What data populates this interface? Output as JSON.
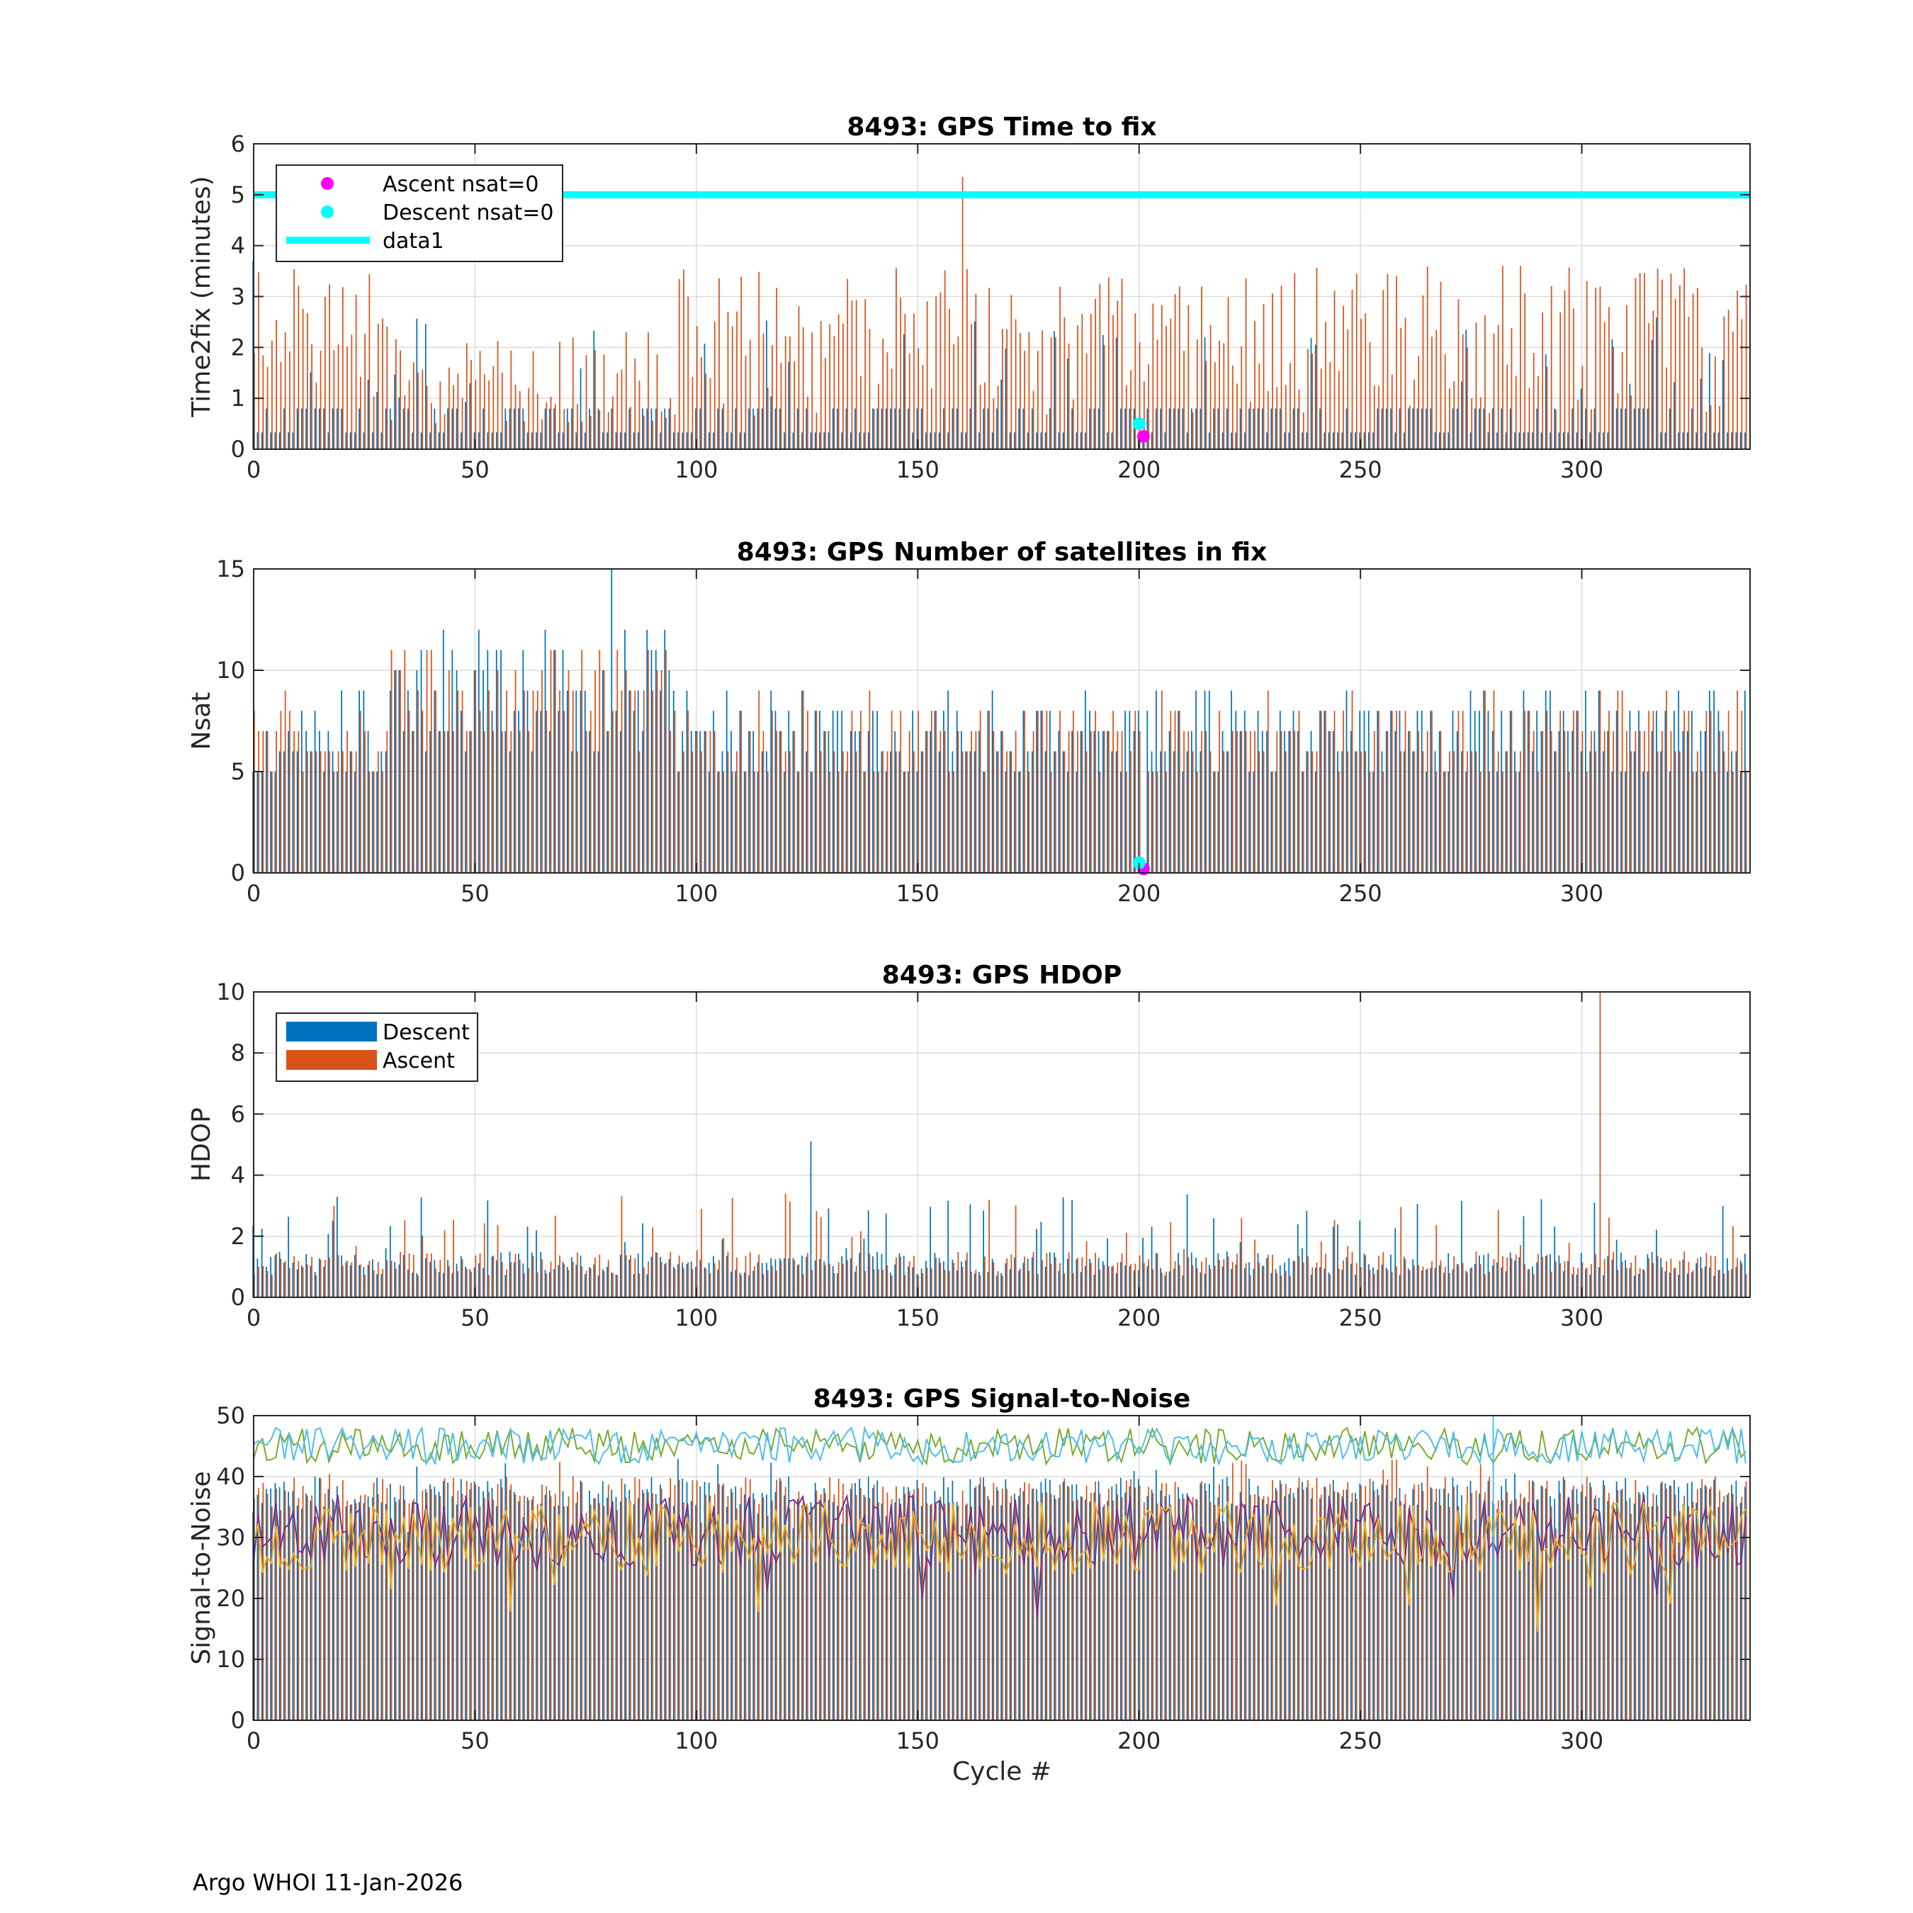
{
  "figure": {
    "footer": "Argo WHOI 11-Jan-2026",
    "xlabel": "Cycle #",
    "xlim": [
      0,
      338
    ],
    "xticks": [
      0,
      50,
      100,
      150,
      200,
      250,
      300
    ],
    "colors": {
      "descent": "#0072bd",
      "ascent": "#d95319",
      "magenta": "#ff00ff",
      "cyan": "#00ffff",
      "purple": "#7e2f8e",
      "yellow": "#edb120",
      "green": "#77ac30",
      "lightblue": "#4dbeee"
    }
  },
  "chart_data": [
    {
      "type": "bar",
      "title": "8493: GPS Time to fix",
      "ylabel": "Time2fix (minutes)",
      "ylim": [
        0,
        6
      ],
      "yticks": [
        0,
        1,
        2,
        3,
        4,
        5,
        6
      ],
      "grid": true,
      "legend_position": "top-left",
      "legend": [
        {
          "label": "Ascent nsat=0",
          "kind": "marker",
          "color": "#ff00ff"
        },
        {
          "label": "Descent nsat=0",
          "kind": "marker",
          "color": "#00ffff"
        },
        {
          "label": "data1",
          "kind": "line",
          "color": "#00ffff"
        }
      ],
      "reference_line": {
        "y": 5,
        "color": "#00ffff"
      },
      "markers": [
        {
          "name": "Ascent nsat=0",
          "x": 201,
          "y": 0.25,
          "color": "#ff00ff"
        },
        {
          "name": "Descent nsat=0",
          "x": 200,
          "y": 0.5,
          "color": "#00ffff"
        }
      ],
      "series_summary": [
        {
          "name": "Descent",
          "typical_range": [
            0.3,
            0.8
          ],
          "max": 3.7
        },
        {
          "name": "Ascent",
          "typical_range": [
            1.0,
            3.5
          ],
          "max": 5.35,
          "max_at_cycle": 160
        }
      ]
    },
    {
      "type": "bar",
      "title": "8493: GPS Number of satellites in fix",
      "ylabel": "Nsat",
      "ylim": [
        0,
        15
      ],
      "yticks": [
        0,
        5,
        10,
        15
      ],
      "grid": true,
      "markers": [
        {
          "name": "Ascent nsat=0",
          "x": 201,
          "y": 0.2,
          "color": "#ff00ff"
        },
        {
          "name": "Descent nsat=0",
          "x": 200,
          "y": 0.5,
          "color": "#00ffff"
        }
      ],
      "series_summary": [
        {
          "name": "Descent",
          "typical_range": [
            5,
            9
          ],
          "max": 15,
          "max_at_cycle": 81
        },
        {
          "name": "Ascent",
          "typical_range": [
            5,
            9
          ],
          "max": 12
        }
      ]
    },
    {
      "type": "bar",
      "title": "8493: GPS HDOP",
      "ylabel": "HDOP",
      "ylim": [
        0,
        10
      ],
      "yticks": [
        0,
        2,
        4,
        6,
        8,
        10
      ],
      "grid": true,
      "legend_position": "top-left",
      "legend": [
        {
          "label": "Descent",
          "kind": "bar",
          "color": "#0072bd"
        },
        {
          "label": "Ascent",
          "kind": "bar",
          "color": "#d95319"
        }
      ],
      "series_summary": [
        {
          "name": "Descent",
          "typical_range": [
            0.7,
            1.5
          ],
          "max": 5.1,
          "max_at_cycle": 126
        },
        {
          "name": "Ascent",
          "typical_range": [
            0.7,
            1.5
          ],
          "max": 10,
          "max_at_cycle": 304
        }
      ]
    },
    {
      "type": "line",
      "title": "8493: GPS Signal-to-Noise",
      "ylabel": "Signal-to-Noise",
      "ylim": [
        0,
        50
      ],
      "yticks": [
        0,
        10,
        20,
        30,
        40,
        50
      ],
      "grid": true,
      "bars_summary": [
        {
          "name": "Descent",
          "typical_range": [
            35,
            40
          ]
        },
        {
          "name": "Ascent",
          "typical_range": [
            35,
            40
          ]
        }
      ],
      "series_summary": [
        {
          "name": "green",
          "color": "#77ac30",
          "mean": 45
        },
        {
          "name": "lightblue",
          "color": "#4dbeee",
          "mean": 45
        },
        {
          "name": "purple",
          "color": "#7e2f8e",
          "mean": 31
        },
        {
          "name": "yellow",
          "color": "#edb120",
          "mean": 30
        }
      ]
    }
  ]
}
